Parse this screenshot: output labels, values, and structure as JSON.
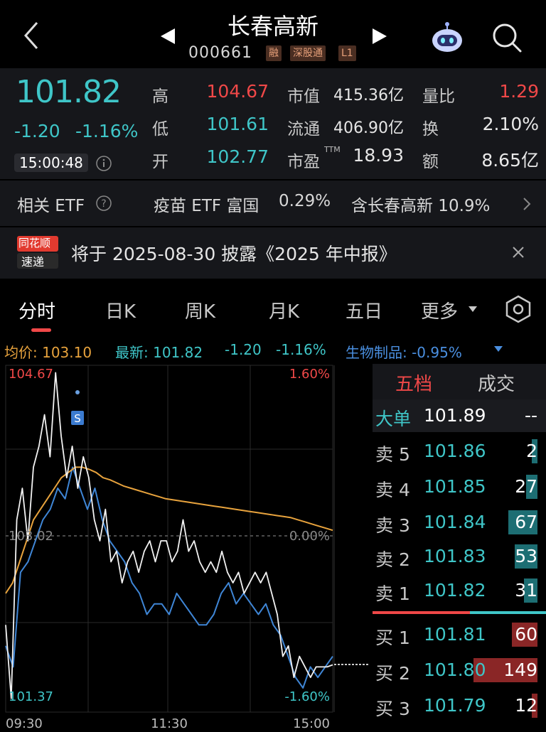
{
  "header": {
    "title": "长春高新",
    "code": "000661",
    "tags": [
      "融",
      "深股通",
      "L1"
    ]
  },
  "quote": {
    "price": "101.82",
    "change": "-1.20",
    "change_pct": "-1.16%",
    "time": "15:00:48",
    "high_label": "高",
    "high": "104.67",
    "low_label": "低",
    "low": "101.61",
    "open_label": "开",
    "open": "102.77",
    "mcap_label": "市值",
    "mcap": "415.36亿",
    "float_label": "流通",
    "float": "406.90亿",
    "pe_label": "市盈",
    "pe_sup": "TTM",
    "pe": "18.93",
    "vol_ratio_label": "量比",
    "vol_ratio": "1.29",
    "turnover_label": "换",
    "turnover": "2.10%",
    "amount_label": "额",
    "amount": "8.65亿"
  },
  "etf": {
    "label": "相关 ETF",
    "name": "疫苗 ETF 富国",
    "pct": "0.29%",
    "holding": "含长春高新 10.9%"
  },
  "notice": {
    "logo_top": "同花顺",
    "logo_bottom": "速递",
    "text": "将于 2025-08-30 披露《2025 年中报》"
  },
  "tabs": [
    "分时",
    "日K",
    "周K",
    "月K",
    "五日",
    "更多"
  ],
  "legend": {
    "avg": "均价: 103.10",
    "latest": "最新: 101.82",
    "chg": "-1.20",
    "pct": "-1.16%",
    "sector": "生物制品: -0.95%"
  },
  "chart_data": {
    "type": "line",
    "price_high": "104.67",
    "price_low": "101.37",
    "prev_close": "103.02",
    "pct_high": "1.60%",
    "pct_zero": "0.00%",
    "pct_low": "-1.60%",
    "x_ticks": [
      "09:30",
      "11:30",
      "15:00"
    ],
    "marker": "S",
    "ylim": [
      101.37,
      104.67
    ],
    "price_series": [
      102.2,
      101.5,
      103.2,
      103.5,
      103.0,
      103.7,
      103.9,
      104.2,
      103.8,
      104.6,
      104.0,
      103.6,
      103.9,
      103.5,
      103.8,
      103.6,
      103.2,
      103.0,
      103.3,
      102.8,
      102.9,
      102.6,
      102.8,
      102.9,
      102.7,
      102.9,
      103.0,
      102.8,
      103.0,
      103.0,
      102.8,
      102.9,
      103.2,
      102.9,
      103.0,
      102.8,
      102.7,
      102.8,
      102.7,
      102.9,
      102.7,
      102.6,
      102.7,
      102.5,
      102.6,
      102.7,
      102.6,
      102.7,
      102.5,
      102.3,
      101.9,
      102.0,
      101.7,
      101.9,
      101.8,
      101.7,
      101.8,
      101.8,
      101.8,
      101.82
    ],
    "avg_series": [
      102.5,
      102.6,
      102.8,
      103.0,
      103.2,
      103.3,
      103.4,
      103.5,
      103.6,
      103.65,
      103.7,
      103.7,
      103.68,
      103.65,
      103.6,
      103.58,
      103.55,
      103.52,
      103.5,
      103.48,
      103.46,
      103.44,
      103.42,
      103.4,
      103.39,
      103.38,
      103.37,
      103.36,
      103.35,
      103.34,
      103.33,
      103.32,
      103.31,
      103.3,
      103.29,
      103.28,
      103.27,
      103.26,
      103.25,
      103.24,
      103.23,
      103.22,
      103.2,
      103.18,
      103.16,
      103.14,
      103.12,
      103.1
    ],
    "sector_series": [
      102.0,
      101.8,
      102.7,
      102.8,
      103.0,
      103.2,
      103.3,
      103.5,
      103.4,
      103.7,
      103.5,
      103.3,
      103.5,
      103.2,
      103.0,
      102.9,
      102.8,
      102.6,
      102.5,
      102.3,
      102.4,
      102.4,
      102.3,
      102.5,
      102.4,
      102.3,
      102.2,
      102.2,
      102.3,
      102.5,
      102.6,
      102.4,
      102.5,
      102.4,
      102.3,
      102.4,
      102.2,
      102.1,
      101.9,
      101.7,
      101.6,
      101.8,
      101.7,
      101.8,
      101.9
    ]
  },
  "book": {
    "tab_active": "五档",
    "tab_other": "成交",
    "big_label": "大单",
    "big_price": "101.89",
    "big_vol": "--",
    "rows": [
      {
        "label": "卖 5",
        "price": "101.86",
        "vol": "2",
        "side": "ask",
        "fill": 0.02
      },
      {
        "label": "卖 4",
        "price": "101.85",
        "vol": "27",
        "side": "ask",
        "fill": 0.18
      },
      {
        "label": "卖 3",
        "price": "101.84",
        "vol": "67",
        "side": "ask",
        "fill": 0.45
      },
      {
        "label": "卖 2",
        "price": "101.83",
        "vol": "53",
        "side": "ask",
        "fill": 0.36
      },
      {
        "label": "卖 1",
        "price": "101.82",
        "vol": "31",
        "side": "ask",
        "fill": 0.21
      },
      {
        "label": "买 1",
        "price": "101.81",
        "vol": "60",
        "side": "bid",
        "fill": 0.4
      },
      {
        "label": "买 2",
        "price": "101.80",
        "vol": "149",
        "side": "bid",
        "fill": 1.0
      },
      {
        "label": "买 3",
        "price": "101.79",
        "vol": "12",
        "side": "bid",
        "fill": 0.08
      }
    ],
    "colors": {
      "ask": "#1d6e73",
      "bid": "#8a2626"
    }
  }
}
